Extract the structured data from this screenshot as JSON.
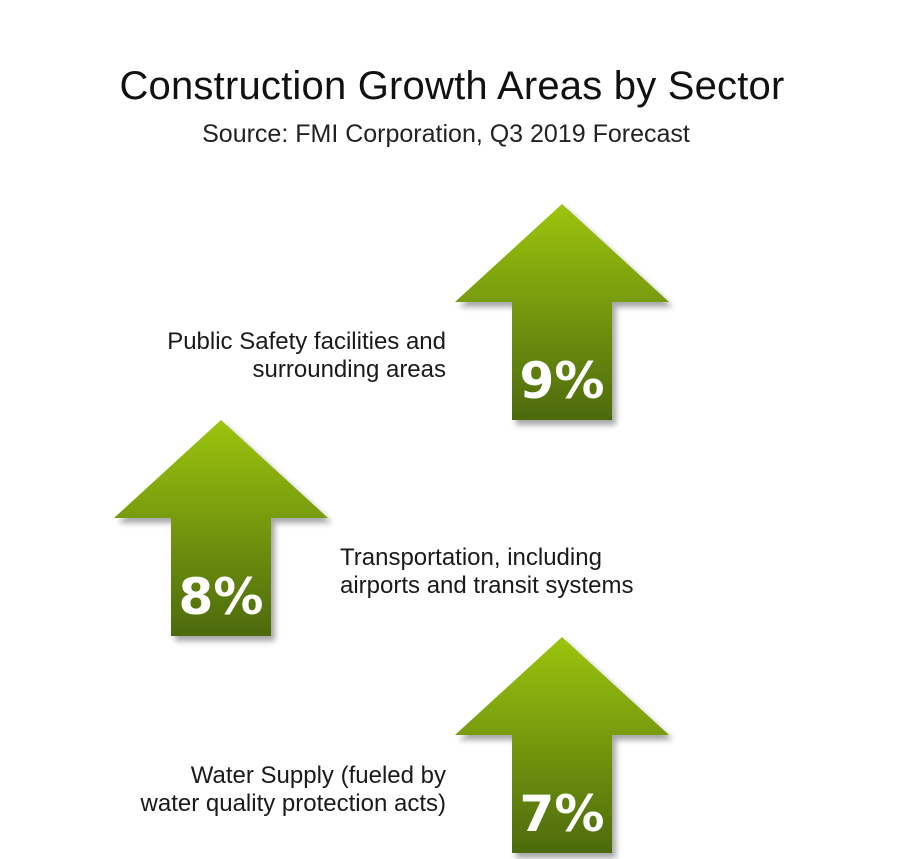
{
  "title": "Construction Growth Areas by Sector",
  "subtitle": "Source: FMI Corporation, Q3 2019 Forecast",
  "colors": {
    "arrow_top": "#9cc40e",
    "arrow_bottom": "#4c6a0e",
    "arrow_label": "#ffffff",
    "text": "#1a1a1a"
  },
  "chart_data": {
    "type": "bar",
    "title": "Construction Growth Areas by Sector",
    "subtitle": "Source: FMI Corporation, Q3 2019 Forecast",
    "unit": "%",
    "categories": [
      "Public Safety facilities and\nsurrounding areas",
      "Transportation, including\nairports and transit systems",
      "Water Supply (fueled by\nwater quality protection acts)"
    ],
    "values": [
      9,
      8,
      7
    ],
    "data_labels": [
      "9%",
      "8%",
      "7%"
    ]
  }
}
